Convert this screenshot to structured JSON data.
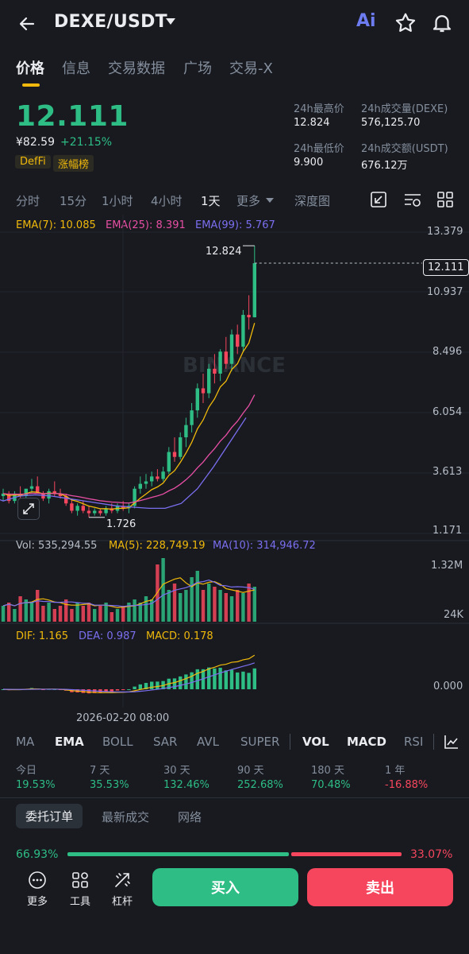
{
  "header": {
    "pair": "DEXE/USDT",
    "ai_label": "Ai"
  },
  "tabs": [
    {
      "label": "价格",
      "active": true
    },
    {
      "label": "信息",
      "active": false
    },
    {
      "label": "交易数据",
      "active": false
    },
    {
      "label": "广场",
      "active": false
    },
    {
      "label": "交易-X",
      "active": false
    }
  ],
  "ticker": {
    "last_price": "12.111",
    "cny_price": "¥82.59",
    "change_pct": "+21.15%",
    "tags": [
      "DefFi",
      "涨幅榜"
    ],
    "high_label": "24h最高价",
    "high_value": "12.824",
    "low_label": "24h最低价",
    "low_value": "9.900",
    "vol_label": "24h成交量(DEXE)",
    "vol_value": "576,125.70",
    "amt_label": "24h成交额(USDT)",
    "amt_value": "676.12万"
  },
  "timeframes": [
    {
      "label": "分时",
      "active": false
    },
    {
      "label": "15分",
      "active": false
    },
    {
      "label": "1小时",
      "active": false
    },
    {
      "label": "4小时",
      "active": false
    },
    {
      "label": "1天",
      "active": true
    },
    {
      "label": "更多",
      "active": false
    },
    {
      "label": "深度图",
      "active": false
    }
  ],
  "ema_legend": {
    "ema7": "EMA(7): 10.085",
    "ema25": "EMA(25): 8.391",
    "ema99": "EMA(99): 5.767"
  },
  "colors": {
    "up": "#2ebd85",
    "down": "#f6465d",
    "ema7": "#f0b90b",
    "ema25": "#e84fa4",
    "ema99": "#7b6ff0",
    "accent": "#f0b90b"
  },
  "chart_data": {
    "type": "candlestick",
    "price_axis": [
      "13.379",
      "10.937",
      "8.496",
      "6.054",
      "3.613",
      "1.171"
    ],
    "current_price_label": "12.111",
    "high_marker": "12.824",
    "low_marker": "1.726",
    "watermark": "BINANCE",
    "ohlc": [
      [
        2.6,
        2.9,
        2.4,
        2.7
      ],
      [
        2.7,
        2.8,
        2.3,
        2.4
      ],
      [
        2.4,
        2.8,
        2.3,
        2.7
      ],
      [
        2.7,
        3.0,
        2.5,
        2.6
      ],
      [
        2.6,
        2.9,
        2.5,
        2.9
      ],
      [
        2.9,
        3.3,
        2.7,
        3.0
      ],
      [
        3.0,
        3.4,
        2.8,
        2.7
      ],
      [
        2.7,
        2.8,
        2.4,
        2.5
      ],
      [
        2.5,
        2.9,
        2.3,
        2.8
      ],
      [
        2.8,
        3.2,
        2.6,
        2.7
      ],
      [
        2.7,
        2.9,
        2.5,
        2.6
      ],
      [
        2.6,
        2.7,
        2.2,
        2.3
      ],
      [
        2.3,
        2.5,
        1.9,
        2.0
      ],
      [
        2.0,
        2.3,
        1.8,
        2.2
      ],
      [
        2.2,
        2.4,
        1.9,
        2.0
      ],
      [
        2.0,
        2.2,
        1.73,
        1.9
      ],
      [
        1.9,
        2.1,
        1.8,
        2.0
      ],
      [
        2.0,
        2.1,
        1.8,
        1.9
      ],
      [
        1.9,
        2.2,
        1.8,
        2.1
      ],
      [
        2.1,
        2.3,
        1.9,
        2.0
      ],
      [
        2.0,
        2.3,
        1.9,
        2.2
      ],
      [
        2.2,
        2.4,
        2.0,
        2.1
      ],
      [
        2.1,
        2.3,
        1.9,
        2.2
      ],
      [
        2.2,
        3.0,
        2.1,
        2.9
      ],
      [
        2.9,
        3.4,
        2.7,
        3.1
      ],
      [
        3.1,
        3.5,
        2.9,
        3.2
      ],
      [
        3.2,
        3.6,
        3.0,
        3.4
      ],
      [
        3.4,
        3.7,
        3.2,
        3.3
      ],
      [
        3.3,
        3.8,
        3.2,
        3.6
      ],
      [
        3.6,
        4.6,
        3.5,
        4.4
      ],
      [
        4.4,
        5.0,
        4.0,
        4.2
      ],
      [
        4.2,
        5.2,
        4.1,
        5.0
      ],
      [
        5.0,
        5.8,
        4.6,
        5.5
      ],
      [
        5.5,
        6.4,
        5.2,
        6.1
      ],
      [
        6.1,
        7.2,
        5.8,
        7.0
      ],
      [
        7.0,
        7.6,
        6.4,
        6.8
      ],
      [
        6.8,
        8.0,
        6.6,
        7.8
      ],
      [
        7.8,
        8.4,
        7.2,
        7.6
      ],
      [
        7.6,
        8.6,
        7.3,
        8.5
      ],
      [
        8.5,
        9.1,
        7.8,
        8.0
      ],
      [
        8.0,
        9.4,
        7.7,
        9.2
      ],
      [
        9.2,
        9.6,
        8.4,
        8.7
      ],
      [
        8.7,
        10.2,
        8.5,
        10.0
      ],
      [
        10.0,
        10.8,
        9.4,
        9.9
      ],
      [
        9.9,
        12.824,
        9.9,
        12.111
      ]
    ],
    "ema99_points": [
      [
        2.4,
        0
      ],
      [
        2.6,
        4
      ],
      [
        2.65,
        8
      ],
      [
        2.6,
        12
      ],
      [
        2.5,
        16
      ],
      [
        2.4,
        20
      ],
      [
        2.3,
        24
      ],
      [
        2.2,
        28
      ],
      [
        2.15,
        32
      ],
      [
        2.1,
        36
      ],
      [
        2.1,
        40
      ],
      [
        2.3,
        44
      ],
      [
        2.9,
        48
      ],
      [
        3.8,
        52
      ],
      [
        4.8,
        56
      ],
      [
        5.8,
        60
      ]
    ],
    "volume_axis": [
      "1.32M",
      "24K"
    ],
    "volume_legend": {
      "vol": "Vol: 535,294.55",
      "ma5": "MA(5): 228,749.19",
      "ma10": "MA(10): 314,946.72"
    },
    "volume_values": [
      0.25,
      0.3,
      0.2,
      0.4,
      0.35,
      0.3,
      0.5,
      0.25,
      0.3,
      0.2,
      0.25,
      0.35,
      0.2,
      0.3,
      0.25,
      0.3,
      0.2,
      0.25,
      0.3,
      0.15,
      0.2,
      0.25,
      0.3,
      0.35,
      0.3,
      0.4,
      0.35,
      0.9,
      1.0,
      0.5,
      0.6,
      0.45,
      0.5,
      0.7,
      0.8,
      0.5,
      0.6,
      0.55,
      0.5,
      0.45,
      0.4,
      0.5,
      0.45,
      0.6,
      0.55
    ],
    "macd_legend": {
      "dif": "DIF: 1.165",
      "dea": "DEA: 0.987",
      "macd": "MACD: 0.178"
    },
    "macd_axis": "0.000",
    "date_label": "2026-02-20 08:00"
  },
  "indicator_tabs": [
    {
      "label": "MA",
      "active": false
    },
    {
      "label": "EMA",
      "active": true
    },
    {
      "label": "BOLL",
      "active": false
    },
    {
      "label": "SAR",
      "active": false
    },
    {
      "label": "AVL",
      "active": false
    },
    {
      "label": "SUPER",
      "active": false
    },
    {
      "label": "VOL",
      "active": true
    },
    {
      "label": "MACD",
      "active": true
    },
    {
      "label": "RSI",
      "active": false
    }
  ],
  "performance": [
    {
      "label": "今日",
      "value": "19.53%",
      "up": true
    },
    {
      "label": "7 天",
      "value": "35.53%",
      "up": true
    },
    {
      "label": "30 天",
      "value": "132.46%",
      "up": true
    },
    {
      "label": "90 天",
      "value": "252.68%",
      "up": true
    },
    {
      "label": "180 天",
      "value": "70.48%",
      "up": true
    },
    {
      "label": "1 年",
      "value": "-16.88%",
      "up": false
    }
  ],
  "order_tabs": [
    {
      "label": "委托订单",
      "active": true
    },
    {
      "label": "最新成交",
      "active": false
    },
    {
      "label": "网络",
      "active": false
    }
  ],
  "order_ratio": {
    "buy": "66.93%",
    "sell": "33.07%",
    "buy_fraction": 0.6693
  },
  "bottom_nav": {
    "more": "更多",
    "tools": "工具",
    "leverage": "杠杆",
    "buy": "买入",
    "sell": "卖出"
  }
}
